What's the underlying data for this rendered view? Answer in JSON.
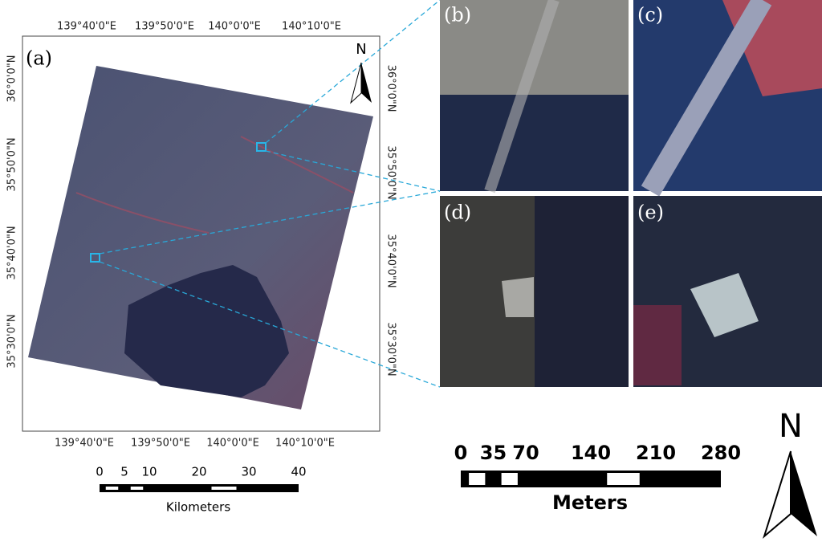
{
  "panel_labels": [
    "(a)",
    "(b)",
    "(c)",
    "(d)",
    "(e)"
  ],
  "map": {
    "top_labels": [
      "139°40'0\"E",
      "139°50'0\"E",
      "140°0'0\"E",
      "140°10'0\"E"
    ],
    "bottom_labels": [
      "139°40'0\"E",
      "139°50'0\"E",
      "140°0'0\"E",
      "140°10'0\"E"
    ],
    "left_labels": [
      "36°0'0\"N",
      "35°50'0\"N",
      "35°40'0\"N",
      "35°30'0\"N"
    ],
    "right_labels": [
      "36°0'0\"N",
      "35°50'0\"N",
      "35°40'0\"N",
      "35°30'0\"N"
    ],
    "north": "N"
  },
  "scale_km": {
    "ticks": [
      0,
      5,
      10,
      20,
      30,
      40
    ],
    "unit": "Kilometers"
  },
  "scale_m": {
    "ticks": [
      0,
      35,
      70,
      140,
      210,
      280
    ],
    "unit": "Meters"
  },
  "north": "N"
}
